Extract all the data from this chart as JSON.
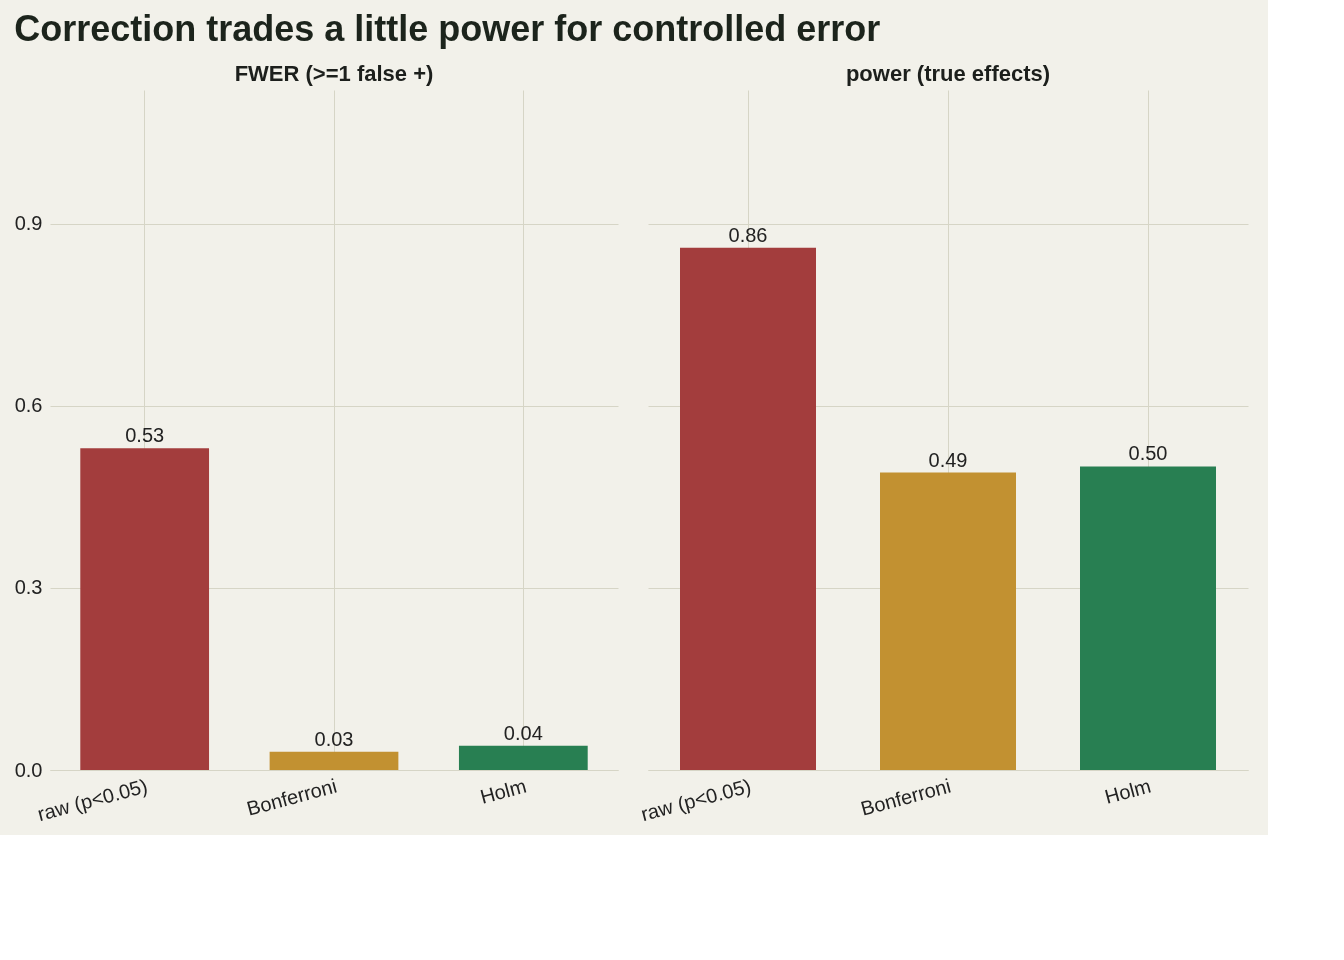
{
  "chart_data": [
    {
      "type": "bar",
      "title": "Correction trades a little power for controlled error",
      "subtitle": "FWER (>=1 false +)",
      "categories": [
        "raw (p<0.05)",
        "Bonferroni",
        "Holm"
      ],
      "values": [
        0.53,
        0.03,
        0.04
      ],
      "colors": [
        "#a33d3d",
        "#c29131",
        "#287f52"
      ],
      "value_labels": [
        "0.53",
        "0.03",
        "0.04"
      ],
      "ylim": [
        0,
        1.12
      ],
      "yticks": [
        {
          "value": 0,
          "label": "0.0"
        },
        0.3,
        0.6,
        0.9
      ],
      "grid": true
    },
    {
      "type": "bar",
      "subtitle": "power (true effects)",
      "categories": [
        "raw (p<0.05)",
        "Bonferroni",
        "Holm"
      ],
      "values": [
        0.86,
        0.49,
        0.5
      ],
      "colors": [
        "#a33d3d",
        "#c29131",
        "#287f52"
      ],
      "value_labels": [
        "0.86",
        "0.49",
        "0.50"
      ],
      "ylim": [
        0,
        1.12
      ],
      "yticks": [
        0,
        0.3,
        0.6,
        0.9
      ],
      "grid": true,
      "tick_labels": "x"
    }
  ]
}
